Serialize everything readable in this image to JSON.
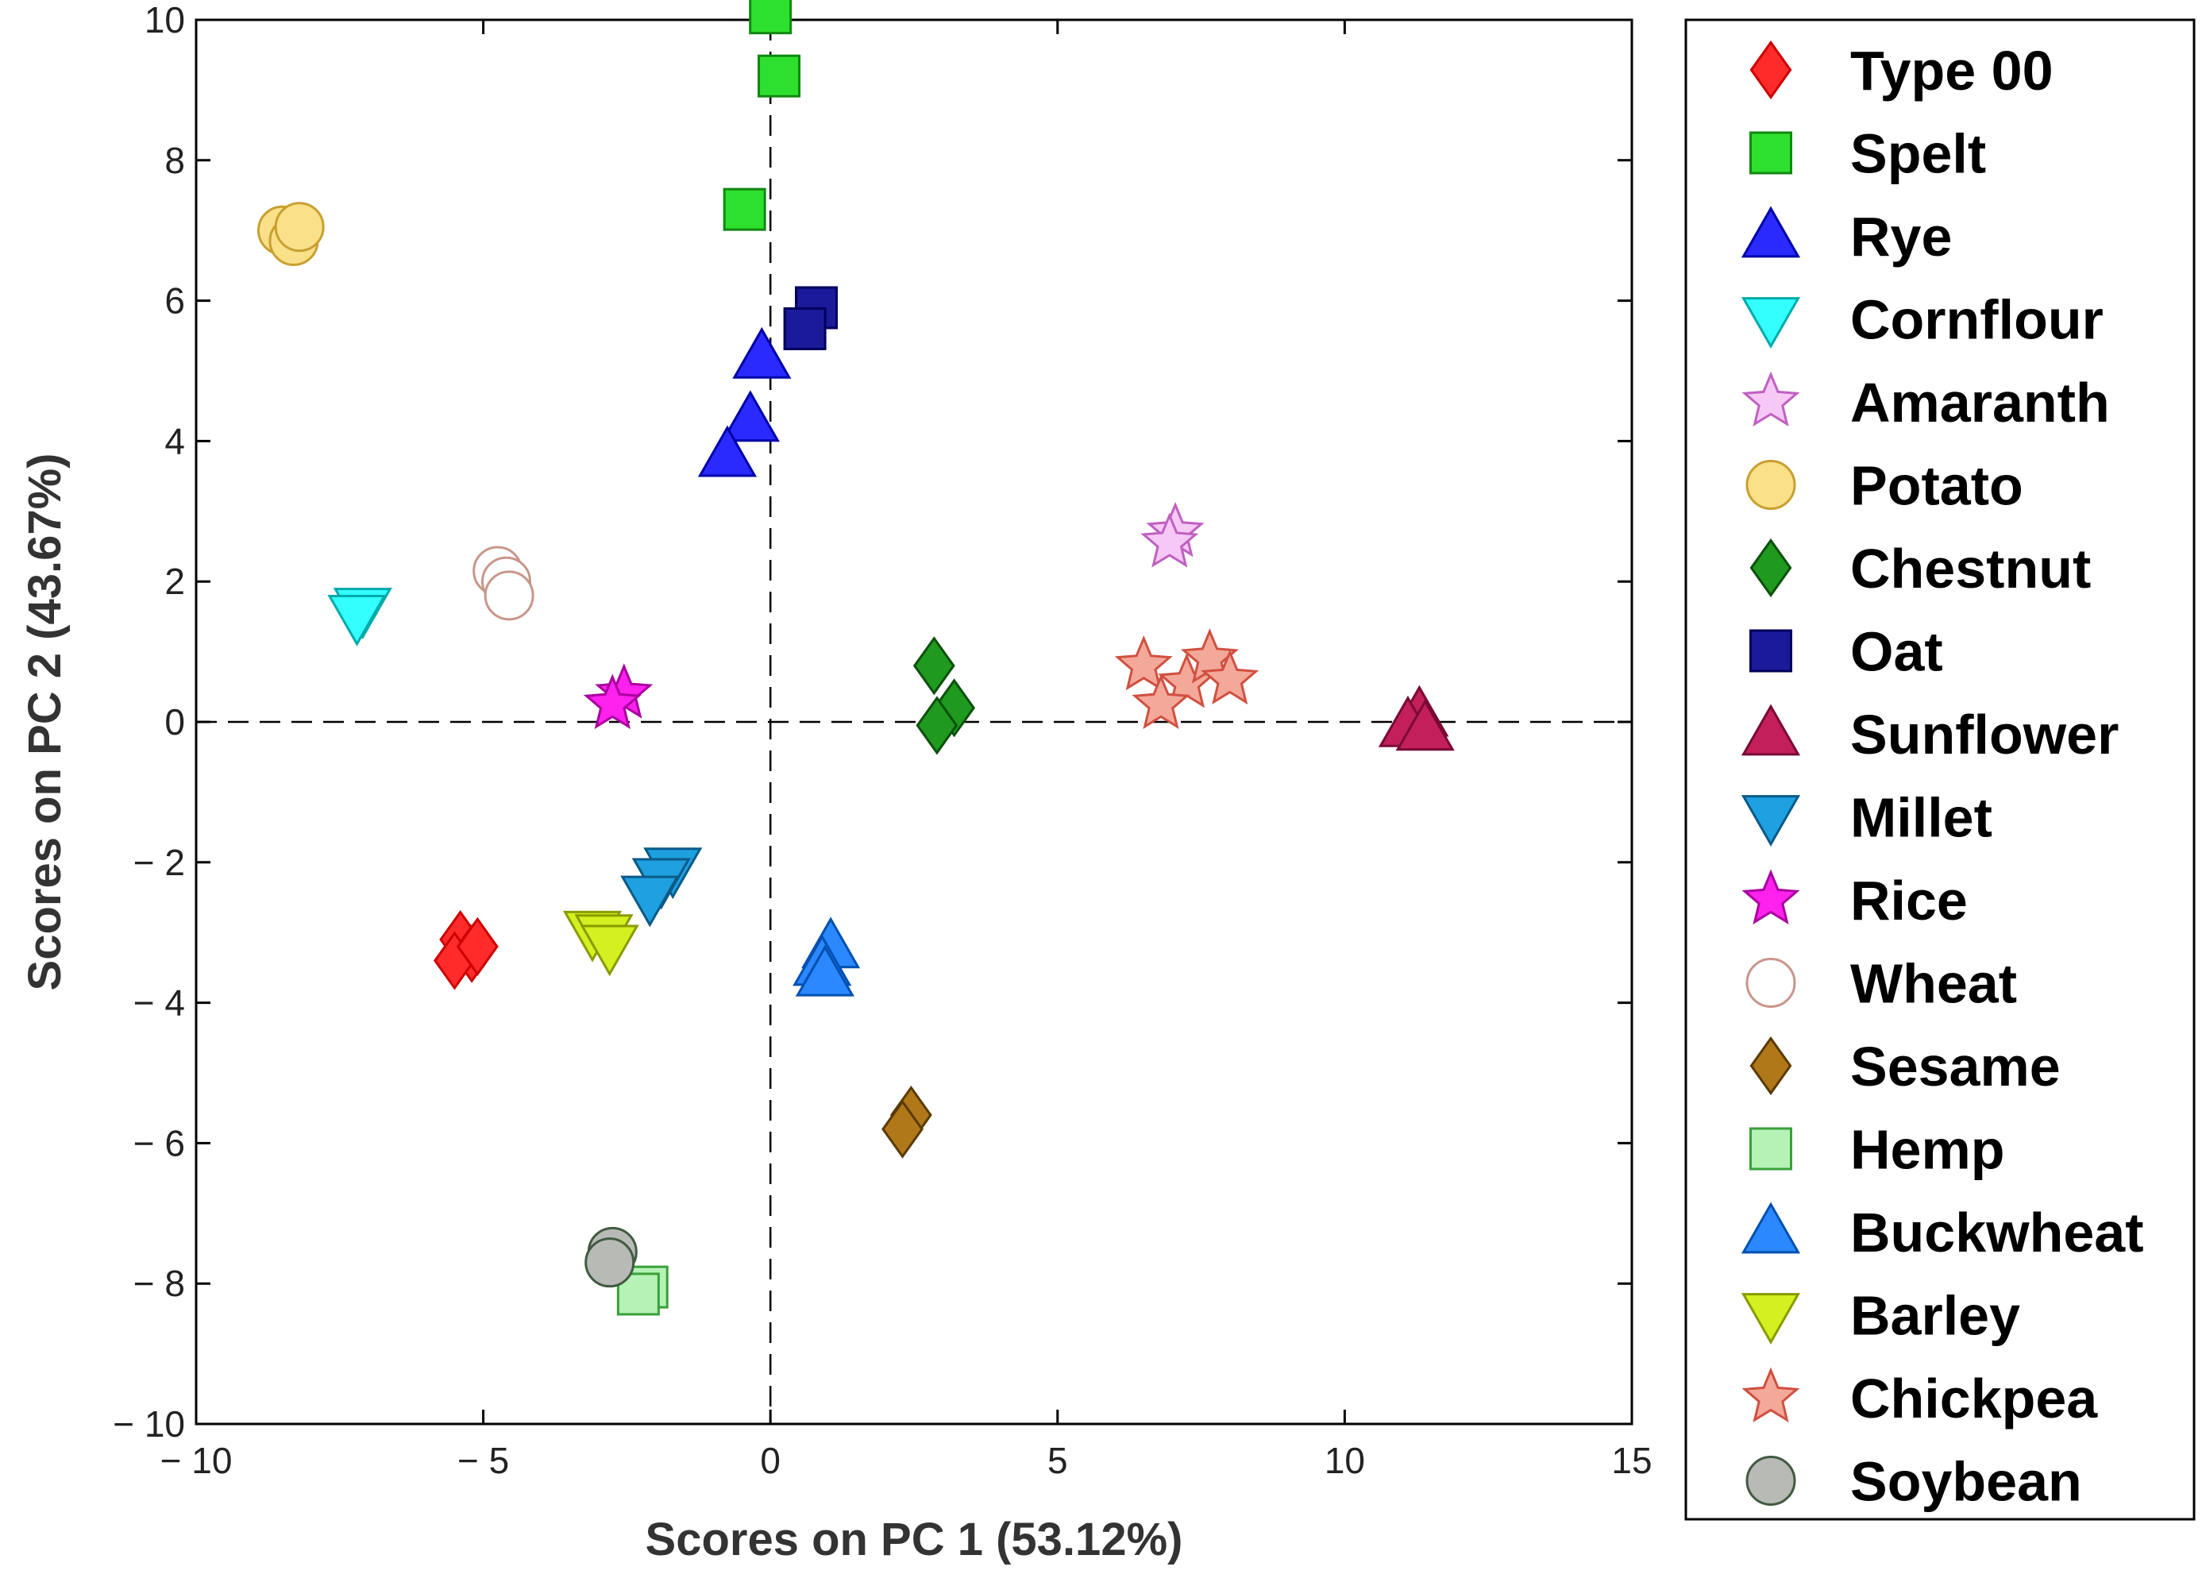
{
  "chart_data": {
    "type": "scatter",
    "xlabel": "Scores on PC 1 (53.12%)",
    "ylabel": "Scores on PC 2 (43.67%)",
    "xlim": [
      -10,
      15
    ],
    "ylim": [
      -10,
      10
    ],
    "xticks": [
      -10,
      -5,
      0,
      5,
      10,
      15
    ],
    "yticks": [
      -10,
      -8,
      -6,
      -4,
      -2,
      0,
      2,
      4,
      6,
      8,
      10
    ],
    "xtick_labels": [
      "− 10",
      "− 5",
      "0",
      "5",
      "10",
      "15"
    ],
    "ytick_labels": [
      "− 10",
      "− 8",
      "− 6",
      "− 4",
      "− 2",
      "0",
      "2",
      "4",
      "6",
      "8",
      "10"
    ],
    "reference_lines": {
      "x": 0,
      "y": 0,
      "style": "dashed"
    },
    "grid": false,
    "legend_position": "outside-right",
    "series": [
      {
        "name": "Type 00",
        "marker": "diamond",
        "fill": "#ff2b2b",
        "stroke": "#cc0000",
        "points": [
          [
            -5.4,
            -3.1
          ],
          [
            -5.2,
            -3.3
          ],
          [
            -5.5,
            -3.4
          ],
          [
            -5.1,
            -3.2
          ]
        ]
      },
      {
        "name": "Spelt",
        "marker": "square",
        "fill": "#2ee02e",
        "stroke": "#118811",
        "points": [
          [
            0.0,
            10.1
          ],
          [
            0.15,
            9.2
          ],
          [
            -0.45,
            7.3
          ]
        ]
      },
      {
        "name": "Rye",
        "marker": "triangle-up",
        "fill": "#2a2aff",
        "stroke": "#0000aa",
        "points": [
          [
            -0.15,
            5.2
          ],
          [
            -0.35,
            4.3
          ],
          [
            -0.75,
            3.8
          ]
        ]
      },
      {
        "name": "Cornflour",
        "marker": "triangle-down",
        "fill": "#33ffff",
        "stroke": "#00aaaa",
        "points": [
          [
            -7.1,
            1.6
          ],
          [
            -7.2,
            1.5
          ]
        ]
      },
      {
        "name": "Amaranth",
        "marker": "star",
        "fill": "#f6c8f6",
        "stroke": "#c060c0",
        "points": [
          [
            7.05,
            2.7
          ],
          [
            6.95,
            2.55
          ]
        ]
      },
      {
        "name": "Potato",
        "marker": "circle",
        "fill": "#fbe08a",
        "stroke": "#c8a030",
        "points": [
          [
            -8.5,
            7.0
          ],
          [
            -8.3,
            6.85
          ],
          [
            -8.2,
            7.05
          ]
        ]
      },
      {
        "name": "Chestnut",
        "marker": "diamond",
        "fill": "#1f9a1f",
        "stroke": "#0b500b",
        "points": [
          [
            2.85,
            0.8
          ],
          [
            3.2,
            0.2
          ],
          [
            2.9,
            -0.05
          ]
        ]
      },
      {
        "name": "Oat",
        "marker": "square",
        "fill": "#1a1a9a",
        "stroke": "#00005a",
        "points": [
          [
            0.8,
            5.9
          ],
          [
            0.6,
            5.6
          ]
        ]
      },
      {
        "name": "Sunflower",
        "marker": "triangle-up",
        "fill": "#c21f5b",
        "stroke": "#7a0a33",
        "points": [
          [
            11.3,
            0.1
          ],
          [
            11.1,
            -0.05
          ],
          [
            11.4,
            -0.1
          ]
        ]
      },
      {
        "name": "Millet",
        "marker": "triangle-down",
        "fill": "#1fa0e0",
        "stroke": "#0a5a88",
        "points": [
          [
            -1.7,
            -2.1
          ],
          [
            -1.9,
            -2.25
          ],
          [
            -2.1,
            -2.5
          ]
        ]
      },
      {
        "name": "Rice",
        "marker": "star",
        "fill": "#ff22ee",
        "stroke": "#aa00a0",
        "points": [
          [
            -2.55,
            0.4
          ],
          [
            -2.75,
            0.25
          ]
        ]
      },
      {
        "name": "Wheat",
        "marker": "circle",
        "fill": "#ffffff",
        "stroke": "#c8968a",
        "points": [
          [
            -4.75,
            2.15
          ],
          [
            -4.6,
            2.0
          ],
          [
            -4.55,
            1.8
          ]
        ]
      },
      {
        "name": "Sesame",
        "marker": "diamond",
        "fill": "#b07818",
        "stroke": "#5a3a00",
        "points": [
          [
            2.45,
            -5.6
          ],
          [
            2.3,
            -5.8
          ]
        ]
      },
      {
        "name": "Hemp",
        "marker": "square",
        "fill": "#b6f2b6",
        "stroke": "#3aa03a",
        "points": [
          [
            -2.15,
            -8.05
          ],
          [
            -2.3,
            -8.15
          ]
        ]
      },
      {
        "name": "Buckwheat",
        "marker": "triangle-up",
        "fill": "#2b88ff",
        "stroke": "#0050b0",
        "points": [
          [
            1.05,
            -3.2
          ],
          [
            0.9,
            -3.45
          ],
          [
            0.95,
            -3.6
          ]
        ]
      },
      {
        "name": "Barley",
        "marker": "triangle-down",
        "fill": "#d4f020",
        "stroke": "#8a9a00",
        "points": [
          [
            -3.1,
            -3.0
          ],
          [
            -2.9,
            -3.05
          ],
          [
            -2.8,
            -3.2
          ]
        ]
      },
      {
        "name": "Chickpea",
        "marker": "star",
        "fill": "#f4a89a",
        "stroke": "#d05040",
        "points": [
          [
            6.5,
            0.8
          ],
          [
            7.25,
            0.55
          ],
          [
            7.65,
            0.9
          ],
          [
            8.0,
            0.6
          ],
          [
            6.8,
            0.25
          ]
        ]
      },
      {
        "name": "Soybean",
        "marker": "circle",
        "fill": "#b8bab6",
        "stroke": "#405a40",
        "points": [
          [
            -2.75,
            -7.55
          ],
          [
            -2.8,
            -7.7
          ]
        ]
      }
    ]
  }
}
